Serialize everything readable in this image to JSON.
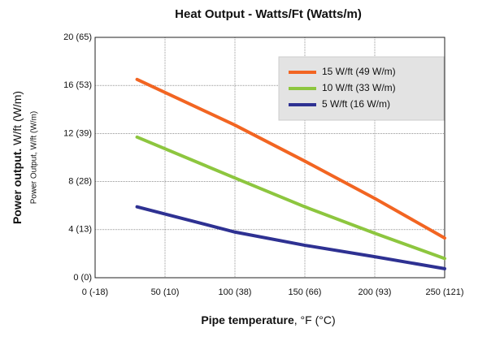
{
  "chart_data": {
    "type": "line",
    "title": "Heat Output - Watts/Ft (Watts/m)",
    "ylabel": {
      "bold": "Power output.",
      "rest": "W/ft  (W/m)"
    },
    "ylabel2": "Power Output, W/ft (W/m)",
    "xlabel": {
      "bold": "Pipe temperature",
      "rest": ", °F (°C)"
    },
    "xlim": [
      0,
      250
    ],
    "ylim": [
      0,
      20
    ],
    "xticks": [
      {
        "value": 0,
        "label": "0 (-18)"
      },
      {
        "value": 50,
        "label": "50 (10)"
      },
      {
        "value": 100,
        "label": "100 (38)"
      },
      {
        "value": 150,
        "label": "150 (66)"
      },
      {
        "value": 200,
        "label": "200 (93)"
      },
      {
        "value": 250,
        "label": "250 (121)"
      }
    ],
    "yticks": [
      {
        "value": 0,
        "label": "0 (0)"
      },
      {
        "value": 4,
        "label": "4 (13)"
      },
      {
        "value": 8,
        "label": "8 (28)"
      },
      {
        "value": 12,
        "label": "12 (39)"
      },
      {
        "value": 16,
        "label": "16 (53)"
      },
      {
        "value": 20,
        "label": "20 (65)"
      }
    ],
    "grid": true,
    "series": [
      {
        "name": "15 W/ft (49 W/m)",
        "color": "#f26522",
        "x": [
          30,
          100,
          150,
          200,
          250
        ],
        "values": [
          16.5,
          12.7,
          9.7,
          6.6,
          3.3
        ]
      },
      {
        "name": "10 W/ft (33 W/m)",
        "color": "#8dc63f",
        "x": [
          30,
          100,
          150,
          200,
          250
        ],
        "values": [
          11.7,
          8.3,
          5.9,
          3.7,
          1.6
        ]
      },
      {
        "name": "5 W/ft (16 W/m)",
        "color": "#2e3192",
        "x": [
          30,
          50,
          100,
          150,
          200,
          250
        ],
        "values": [
          5.9,
          5.3,
          3.8,
          2.7,
          1.75,
          0.75
        ]
      }
    ]
  }
}
